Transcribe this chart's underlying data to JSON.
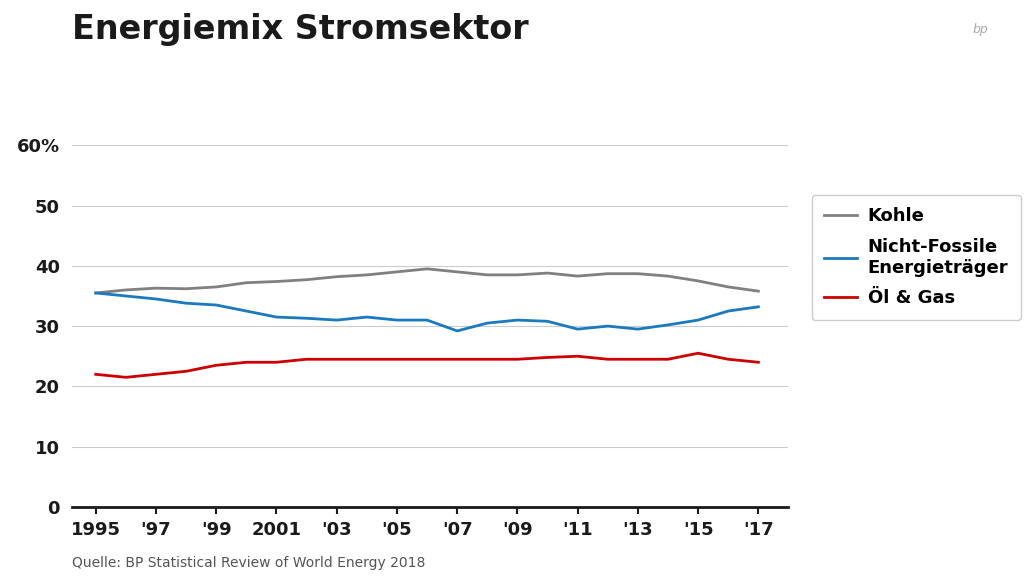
{
  "title": "Energiemix Stromsektor",
  "source": "Quelle: BP Statistical Review of World Energy 2018",
  "years": [
    1995,
    1996,
    1997,
    1998,
    1999,
    2000,
    2001,
    2002,
    2003,
    2004,
    2005,
    2006,
    2007,
    2008,
    2009,
    2010,
    2011,
    2012,
    2013,
    2014,
    2015,
    2016,
    2017
  ],
  "x_tick_labels": [
    "1995",
    "'97",
    "'99",
    "2001",
    "'03",
    "'05",
    "'07",
    "'09",
    "'11",
    "'13",
    "'15",
    "'17"
  ],
  "x_tick_positions": [
    1995,
    1997,
    1999,
    2001,
    2003,
    2005,
    2007,
    2009,
    2011,
    2013,
    2015,
    2017
  ],
  "kohle": [
    35.5,
    36.0,
    36.3,
    36.2,
    36.5,
    37.2,
    37.4,
    37.7,
    38.2,
    38.5,
    39.0,
    39.5,
    39.0,
    38.5,
    38.5,
    38.8,
    38.3,
    38.7,
    38.7,
    38.3,
    37.5,
    36.5,
    35.8
  ],
  "nicht_fossile": [
    35.5,
    35.0,
    34.5,
    33.8,
    33.5,
    32.5,
    31.5,
    31.3,
    31.0,
    31.5,
    31.0,
    31.0,
    29.2,
    30.5,
    31.0,
    30.8,
    29.5,
    30.0,
    29.5,
    30.2,
    31.0,
    32.5,
    33.2
  ],
  "oel_gas": [
    22.0,
    21.5,
    22.0,
    22.5,
    23.5,
    24.0,
    24.0,
    24.5,
    24.5,
    24.5,
    24.5,
    24.5,
    24.5,
    24.5,
    24.5,
    24.8,
    25.0,
    24.5,
    24.5,
    24.5,
    25.5,
    24.5,
    24.0
  ],
  "kohle_color": "#808080",
  "nicht_fossile_color": "#1a7abf",
  "oel_gas_color": "#cc0000",
  "background_color": "#ffffff",
  "plot_bg_color": "#f0f0f0",
  "grid_color": "#cccccc",
  "ylim": [
    0,
    65
  ],
  "yticks": [
    0,
    10,
    20,
    30,
    40,
    50,
    60
  ],
  "ytick_labels": [
    "0",
    "10",
    "20",
    "30",
    "40",
    "50",
    "60%"
  ],
  "title_fontsize": 24,
  "tick_fontsize": 13,
  "legend_fontsize": 13,
  "source_fontsize": 10,
  "line_width": 2.0
}
